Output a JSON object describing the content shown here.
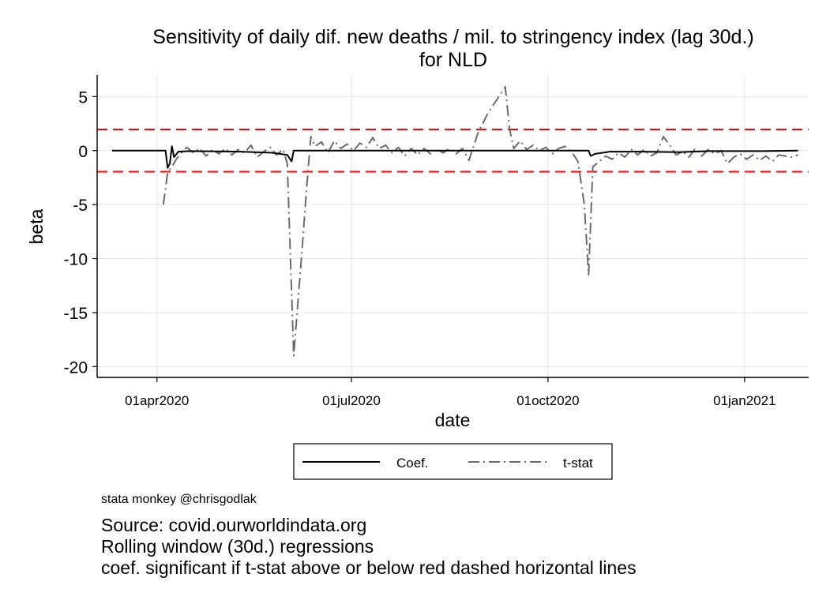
{
  "chart_data": {
    "type": "line",
    "title_line1": "Sensitivity of daily dif. new deaths / mil. to stringency index (lag 30d.)",
    "title_line2": "for NLD",
    "xlabel": "date",
    "ylabel": "beta",
    "x_axis": {
      "type": "date",
      "range": [
        "2020-03-04",
        "2021-01-31"
      ]
    },
    "ylim": [
      -21,
      7
    ],
    "yticks": [
      5,
      0,
      -5,
      -10,
      -15,
      -20
    ],
    "ytick_labels": [
      "5",
      "0",
      "-5",
      "-10",
      "-15",
      "-20"
    ],
    "xticks": [
      "2020-04-01",
      "2020-07-01",
      "2020-10-01",
      "2021-01-01"
    ],
    "xtick_labels": [
      "01apr2020",
      "01jul2020",
      "01oct2020",
      "01jan2021"
    ],
    "grid": true,
    "hlines": [
      {
        "y": 1.96,
        "color": "#ff0000",
        "style": "dashed"
      },
      {
        "y": -1.96,
        "color": "#ff0000",
        "style": "dashed"
      }
    ],
    "series": [
      {
        "name": "Coef.",
        "color": "#000000",
        "style": "solid",
        "points": [
          [
            "2020-03-11",
            0
          ],
          [
            "2020-04-05",
            0
          ],
          [
            "2020-04-06",
            -1.6
          ],
          [
            "2020-04-07",
            -1.2
          ],
          [
            "2020-04-08",
            0.4
          ],
          [
            "2020-04-09",
            -0.6
          ],
          [
            "2020-04-11",
            -0.1
          ],
          [
            "2020-04-16",
            -0.05
          ],
          [
            "2020-05-10",
            -0.1
          ],
          [
            "2020-05-25",
            -0.2
          ],
          [
            "2020-06-01",
            -0.4
          ],
          [
            "2020-06-03",
            -1.0
          ],
          [
            "2020-06-04",
            0
          ],
          [
            "2020-09-01",
            0
          ],
          [
            "2020-10-20",
            0
          ],
          [
            "2020-10-21",
            -0.5
          ],
          [
            "2020-10-23",
            -0.3
          ],
          [
            "2020-10-30",
            -0.1
          ],
          [
            "2020-11-15",
            -0.1
          ],
          [
            "2020-12-01",
            -0.15
          ],
          [
            "2020-12-15",
            -0.05
          ],
          [
            "2021-01-10",
            -0.05
          ],
          [
            "2021-01-26",
            0
          ]
        ]
      },
      {
        "name": "t-stat",
        "color": "#6b6b6b",
        "style": "longdash-dot",
        "points": [
          [
            "2020-04-04",
            -5
          ],
          [
            "2020-04-06",
            -2
          ],
          [
            "2020-04-08",
            -1.5
          ],
          [
            "2020-04-10",
            -0.8
          ],
          [
            "2020-04-12",
            -0.3
          ],
          [
            "2020-04-15",
            0.3
          ],
          [
            "2020-04-18",
            -0.2
          ],
          [
            "2020-04-21",
            0.2
          ],
          [
            "2020-04-24",
            -0.5
          ],
          [
            "2020-04-27",
            0.1
          ],
          [
            "2020-04-30",
            -0.3
          ],
          [
            "2020-05-03",
            0.2
          ],
          [
            "2020-05-06",
            -0.4
          ],
          [
            "2020-05-09",
            0.1
          ],
          [
            "2020-05-12",
            -0.2
          ],
          [
            "2020-05-15",
            0.5
          ],
          [
            "2020-05-18",
            -0.6
          ],
          [
            "2020-05-21",
            -0.1
          ],
          [
            "2020-05-24",
            0.3
          ],
          [
            "2020-05-27",
            -0.4
          ],
          [
            "2020-05-30",
            0.1
          ],
          [
            "2020-06-01",
            -1.2
          ],
          [
            "2020-06-04",
            -19
          ],
          [
            "2020-06-06",
            -14
          ],
          [
            "2020-06-08",
            -9
          ],
          [
            "2020-06-10",
            -3.5
          ],
          [
            "2020-06-12",
            1.3
          ],
          [
            "2020-06-14",
            0.4
          ],
          [
            "2020-06-17",
            0.8
          ],
          [
            "2020-06-20",
            -0.2
          ],
          [
            "2020-06-23",
            0.9
          ],
          [
            "2020-06-26",
            0.2
          ],
          [
            "2020-06-29",
            0.6
          ],
          [
            "2020-07-02",
            0
          ],
          [
            "2020-07-05",
            0.7
          ],
          [
            "2020-07-08",
            0.3
          ],
          [
            "2020-07-11",
            1.2
          ],
          [
            "2020-07-14",
            0.2
          ],
          [
            "2020-07-17",
            0.5
          ],
          [
            "2020-07-20",
            -0.2
          ],
          [
            "2020-07-23",
            0.3
          ],
          [
            "2020-07-26",
            -0.5
          ],
          [
            "2020-07-29",
            0.2
          ],
          [
            "2020-08-01",
            -0.4
          ],
          [
            "2020-08-04",
            0.2
          ],
          [
            "2020-08-07",
            -0.3
          ],
          [
            "2020-08-10",
            0.1
          ],
          [
            "2020-08-13",
            -0.2
          ],
          [
            "2020-08-16",
            0.2
          ],
          [
            "2020-08-19",
            -0.3
          ],
          [
            "2020-08-22",
            0.2
          ],
          [
            "2020-08-25",
            -0.9
          ],
          [
            "2020-08-29",
            1.5
          ],
          [
            "2020-09-03",
            3.5
          ],
          [
            "2020-09-08",
            5.0
          ],
          [
            "2020-09-11",
            5.9
          ],
          [
            "2020-09-13",
            2.0
          ],
          [
            "2020-09-15",
            0.2
          ],
          [
            "2020-09-18",
            0.9
          ],
          [
            "2020-09-21",
            0.1
          ],
          [
            "2020-09-24",
            0.5
          ],
          [
            "2020-09-27",
            0
          ],
          [
            "2020-09-30",
            0.3
          ],
          [
            "2020-10-03",
            -0.3
          ],
          [
            "2020-10-06",
            0.2
          ],
          [
            "2020-10-09",
            0.4
          ],
          [
            "2020-10-12",
            -0.1
          ],
          [
            "2020-10-15",
            -1
          ],
          [
            "2020-10-18",
            -5
          ],
          [
            "2020-10-20",
            -11.5
          ],
          [
            "2020-10-22",
            -1.5
          ],
          [
            "2020-10-25",
            -1
          ],
          [
            "2020-10-28",
            -0.5
          ],
          [
            "2020-10-31",
            -0.8
          ],
          [
            "2020-11-03",
            -0.2
          ],
          [
            "2020-11-06",
            -0.6
          ],
          [
            "2020-11-09",
            0.1
          ],
          [
            "2020-11-12",
            -0.4
          ],
          [
            "2020-11-15",
            0.1
          ],
          [
            "2020-11-18",
            -0.5
          ],
          [
            "2020-11-21",
            -0.2
          ],
          [
            "2020-11-24",
            1.3
          ],
          [
            "2020-11-27",
            0.5
          ],
          [
            "2020-11-30",
            -0.4
          ],
          [
            "2020-12-03",
            -0.1
          ],
          [
            "2020-12-06",
            -0.6
          ],
          [
            "2020-12-09",
            0.2
          ],
          [
            "2020-12-12",
            -0.5
          ],
          [
            "2020-12-15",
            0.1
          ],
          [
            "2020-12-18",
            -0.3
          ],
          [
            "2020-12-21",
            0
          ],
          [
            "2020-12-24",
            -1.2
          ],
          [
            "2020-12-27",
            -0.6
          ],
          [
            "2020-12-30",
            -0.3
          ],
          [
            "2021-01-02",
            -0.8
          ],
          [
            "2021-01-05",
            -0.4
          ],
          [
            "2021-01-08",
            -0.9
          ],
          [
            "2021-01-11",
            -0.5
          ],
          [
            "2021-01-14",
            -1.0
          ],
          [
            "2021-01-17",
            -0.4
          ],
          [
            "2021-01-20",
            -0.5
          ],
          [
            "2021-01-23",
            -0.6
          ],
          [
            "2021-01-26",
            -0.4
          ]
        ]
      }
    ],
    "legend": {
      "position": "bottom",
      "entries": [
        "Coef.",
        "t-stat"
      ]
    }
  },
  "credit": "stata monkey @chrisgodlak",
  "notes": [
    "Source: covid.ourworldindata.org",
    "Rolling window (30d.) regressions",
    "coef. significant if t-stat above or below red dashed horizontal lines"
  ]
}
